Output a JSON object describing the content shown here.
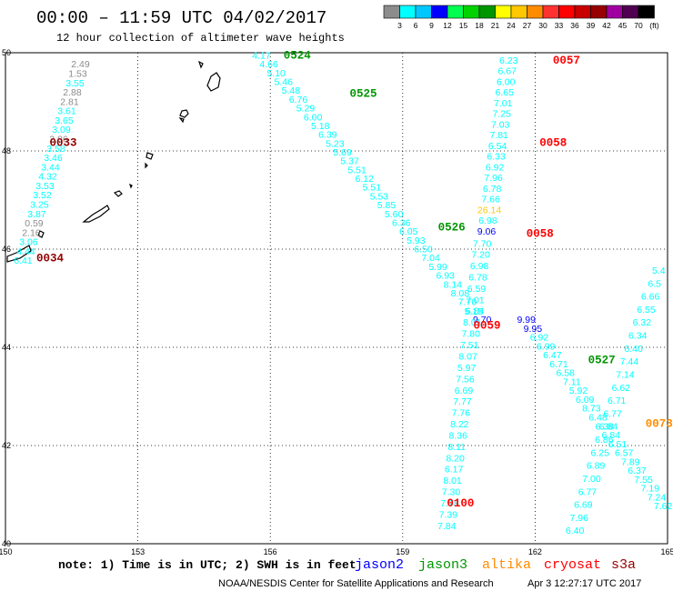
{
  "header": {
    "title": "00:00 – 11:59 UTC 04/02/2017",
    "subtitle": "12 hour collection of altimeter wave heights"
  },
  "colorbar": {
    "labels": [
      "3",
      "6",
      "9",
      "12",
      "15",
      "18",
      "21",
      "24",
      "27",
      "30",
      "33",
      "36",
      "39",
      "42",
      "45",
      "70",
      "(ft)"
    ],
    "colors": [
      "#8c8c8c",
      "#00ffff",
      "#00c8ff",
      "#0000ff",
      "#00ff50",
      "#00d200",
      "#009600",
      "#ffff00",
      "#ffc800",
      "#ff8c00",
      "#ff3232",
      "#ff0000",
      "#c80000",
      "#960000",
      "#a000a0",
      "#500050",
      "#000000"
    ]
  },
  "axes": {
    "x_ticks": [
      "150",
      "153",
      "156",
      "159",
      "162",
      "165"
    ],
    "y_ticks": [
      "50",
      "48",
      "46",
      "44",
      "42",
      "40"
    ]
  },
  "map": {
    "lon_range": [
      150,
      165
    ],
    "lat_range": [
      40,
      50
    ],
    "passes": [
      {
        "label": "0524",
        "color": "#009600",
        "lon": 156.3,
        "lat": 49.88
      },
      {
        "label": "0525",
        "color": "#009600",
        "lon": 157.8,
        "lat": 49.1
      },
      {
        "label": "0526",
        "color": "#009600",
        "lon": 159.8,
        "lat": 46.38
      },
      {
        "label": "0527",
        "color": "#009600",
        "lon": 163.2,
        "lat": 43.68
      },
      {
        "label": "0057",
        "color": "#ff0000",
        "lon": 162.4,
        "lat": 49.78
      },
      {
        "label": "0058",
        "color": "#ff0000",
        "lon": 162.1,
        "lat": 48.1
      },
      {
        "label": "0058",
        "color": "#ff0000",
        "lon": 161.8,
        "lat": 46.25
      },
      {
        "label": "0059",
        "color": "#ff0000",
        "lon": 160.6,
        "lat": 44.38
      },
      {
        "label": "0100",
        "color": "#ff0000",
        "lon": 160.0,
        "lat": 40.76
      },
      {
        "label": "0073",
        "color": "#ff8c00",
        "lon": 164.5,
        "lat": 42.38
      },
      {
        "label": "0033",
        "color": "#960000",
        "lon": 151.0,
        "lat": 48.1
      },
      {
        "label": "0034",
        "color": "#960000",
        "lon": 150.7,
        "lat": 45.75
      }
    ],
    "tracks": [
      {
        "name": "track-a",
        "lon0": 150.4,
        "lat0": 45.7,
        "lon1": 151.7,
        "lat1": 49.7,
        "values": [
          "6.41",
          "4.44",
          "3.06",
          "2.16",
          "0.59",
          "3.87",
          "3.25",
          "3.52",
          "3.53",
          "4.32",
          "3.44",
          "3.46",
          "3.58",
          "2.86",
          "3.09",
          "3.65",
          "3.61",
          "2.81",
          "2.88",
          "3.55",
          "1.53",
          "2.49"
        ],
        "colors": [
          "#00ffff",
          "#00ffff",
          "#00ffff",
          "#8c8c8c",
          "#8c8c8c",
          "#00ffff",
          "#00ffff",
          "#00ffff",
          "#00ffff",
          "#00ffff",
          "#00ffff",
          "#00ffff",
          "#00ffff",
          "#8c8c8c",
          "#00ffff",
          "#00ffff",
          "#00ffff",
          "#8c8c8c",
          "#8c8c8c",
          "#00ffff",
          "#8c8c8c",
          "#8c8c8c"
        ]
      },
      {
        "name": "track-b",
        "lon0": 155.8,
        "lat0": 49.88,
        "lon1": 160.8,
        "lat1": 44.5,
        "values": [
          "4.17",
          "4.66",
          "5.10",
          "5.46",
          "5.48",
          "6.76",
          "5.29",
          "6.00",
          "5.18",
          "6.39",
          "5.23",
          "5.69",
          "5.37",
          "5.51",
          "6.12",
          "5.51",
          "5.53",
          "5.85",
          "5.60",
          "6.36",
          "6.05",
          "5.93",
          "6.50",
          "7.04",
          "5.99",
          "6.93",
          "8.14",
          "8.08",
          "7.70",
          "6.84",
          "9.70"
        ],
        "colors": [
          "#00ffff",
          "#00ffff",
          "#00ffff",
          "#00ffff",
          "#00ffff",
          "#00ffff",
          "#00ffff",
          "#00ffff",
          "#00ffff",
          "#00ffff",
          "#00ffff",
          "#00ffff",
          "#00ffff",
          "#00ffff",
          "#00ffff",
          "#00ffff",
          "#00ffff",
          "#00ffff",
          "#00ffff",
          "#00ffff",
          "#00ffff",
          "#00ffff",
          "#00ffff",
          "#00ffff",
          "#00ffff",
          "#00ffff",
          "#00ffff",
          "#00ffff",
          "#00ffff",
          "#00ffff",
          "#0000ff"
        ]
      },
      {
        "name": "track-c",
        "lon0": 161.4,
        "lat0": 49.78,
        "lon1": 160.9,
        "lat1": 46.3,
        "values": [
          "6.23",
          "6.67",
          "6.00",
          "6.65",
          "7.01",
          "7.25",
          "7.03",
          "7.81",
          "6.54",
          "6.33",
          "6.92",
          "7.96",
          "6.78",
          "7.66",
          "26.14",
          "6.98",
          "9.06"
        ],
        "colors": [
          "#00ffff",
          "#00ffff",
          "#00ffff",
          "#00ffff",
          "#00ffff",
          "#00ffff",
          "#00ffff",
          "#00ffff",
          "#00ffff",
          "#00ffff",
          "#00ffff",
          "#00ffff",
          "#00ffff",
          "#00ffff",
          "#ffc800",
          "#00ffff",
          "#0000ff"
        ]
      },
      {
        "name": "track-d",
        "lon0": 160.8,
        "lat0": 46.05,
        "lon1": 160.0,
        "lat1": 40.3,
        "values": [
          "7.70",
          "7.20",
          "6.98",
          "6.78",
          "6.59",
          "7.01",
          "5.15",
          "8.01",
          "7.80",
          "7.51",
          "8.07",
          "5.97",
          "7.56",
          "6.69",
          "7.77",
          "7.76",
          "8.22",
          "8.36",
          "8.11",
          "8.20",
          "6.17",
          "8.01",
          "7.30",
          "7.78",
          "7.39",
          "7.84"
        ],
        "colors": [
          "#00ffff",
          "#00ffff",
          "#00ffff",
          "#00ffff",
          "#00ffff",
          "#00ffff",
          "#00ffff",
          "#00ffff",
          "#00ffff",
          "#00ffff",
          "#00ffff",
          "#00ffff",
          "#00ffff",
          "#00ffff",
          "#00ffff",
          "#00ffff",
          "#00ffff",
          "#00ffff",
          "#00ffff",
          "#00ffff",
          "#00ffff",
          "#00ffff",
          "#00ffff",
          "#00ffff",
          "#00ffff",
          "#00ffff"
        ]
      },
      {
        "name": "track-e",
        "lon0": 161.8,
        "lat0": 44.5,
        "lon1": 164.9,
        "lat1": 40.7,
        "values": [
          "9.99",
          "9.95",
          "6.92",
          "6.99",
          "6.47",
          "6.71",
          "6.58",
          "7.11",
          "5.92",
          "6.09",
          "8.73",
          "6.48",
          "6.38",
          "6.84",
          "6.51",
          "6.57",
          "7.89",
          "6.37",
          "7.55",
          "7.19",
          "7.24",
          "7.62"
        ],
        "colors": [
          "#0000ff",
          "#0000ff",
          "#00ffff",
          "#00ffff",
          "#00ffff",
          "#00ffff",
          "#00ffff",
          "#00ffff",
          "#00ffff",
          "#00ffff",
          "#00ffff",
          "#00ffff",
          "#00ffff",
          "#00ffff",
          "#00ffff",
          "#00ffff",
          "#00ffff",
          "#00ffff",
          "#00ffff",
          "#00ffff",
          "#00ffff",
          "#00ffff"
        ]
      },
      {
        "name": "track-f",
        "lon0": 164.8,
        "lat0": 45.5,
        "lon1": 162.9,
        "lat1": 40.2,
        "values": [
          "5.4",
          "6.5",
          "6.66",
          "6.55",
          "6.32",
          "6.34",
          "6.40",
          "7.44",
          "7.14",
          "6.62",
          "6.71",
          "6.77",
          "6.84",
          "6.86",
          "6.25",
          "6.89",
          "7.00",
          "6.77",
          "6.69",
          "7.96",
          "6.40"
        ],
        "colors": [
          "#00ffff",
          "#00ffff",
          "#00ffff",
          "#00ffff",
          "#00ffff",
          "#00ffff",
          "#00ffff",
          "#00ffff",
          "#00ffff",
          "#00ffff",
          "#00ffff",
          "#00ffff",
          "#00ffff",
          "#00ffff",
          "#00ffff",
          "#00ffff",
          "#00ffff",
          "#00ffff",
          "#00ffff",
          "#00ffff",
          "#00ffff"
        ]
      }
    ]
  },
  "note": "note: 1) Time is in UTC; 2) SWH is in feet",
  "satellites": [
    {
      "name": "jason2",
      "color": "#0000ff"
    },
    {
      "name": "jason3",
      "color": "#009600"
    },
    {
      "name": "altika",
      "color": "#ff8c00"
    },
    {
      "name": "cryosat",
      "color": "#ff0000"
    },
    {
      "name": "s3a",
      "color": "#960000"
    }
  ],
  "footer": {
    "credit": "NOAA/NESDIS Center for Satellite Applications and Research",
    "timestamp": "Apr  3 12:27:17 UTC 2017"
  }
}
